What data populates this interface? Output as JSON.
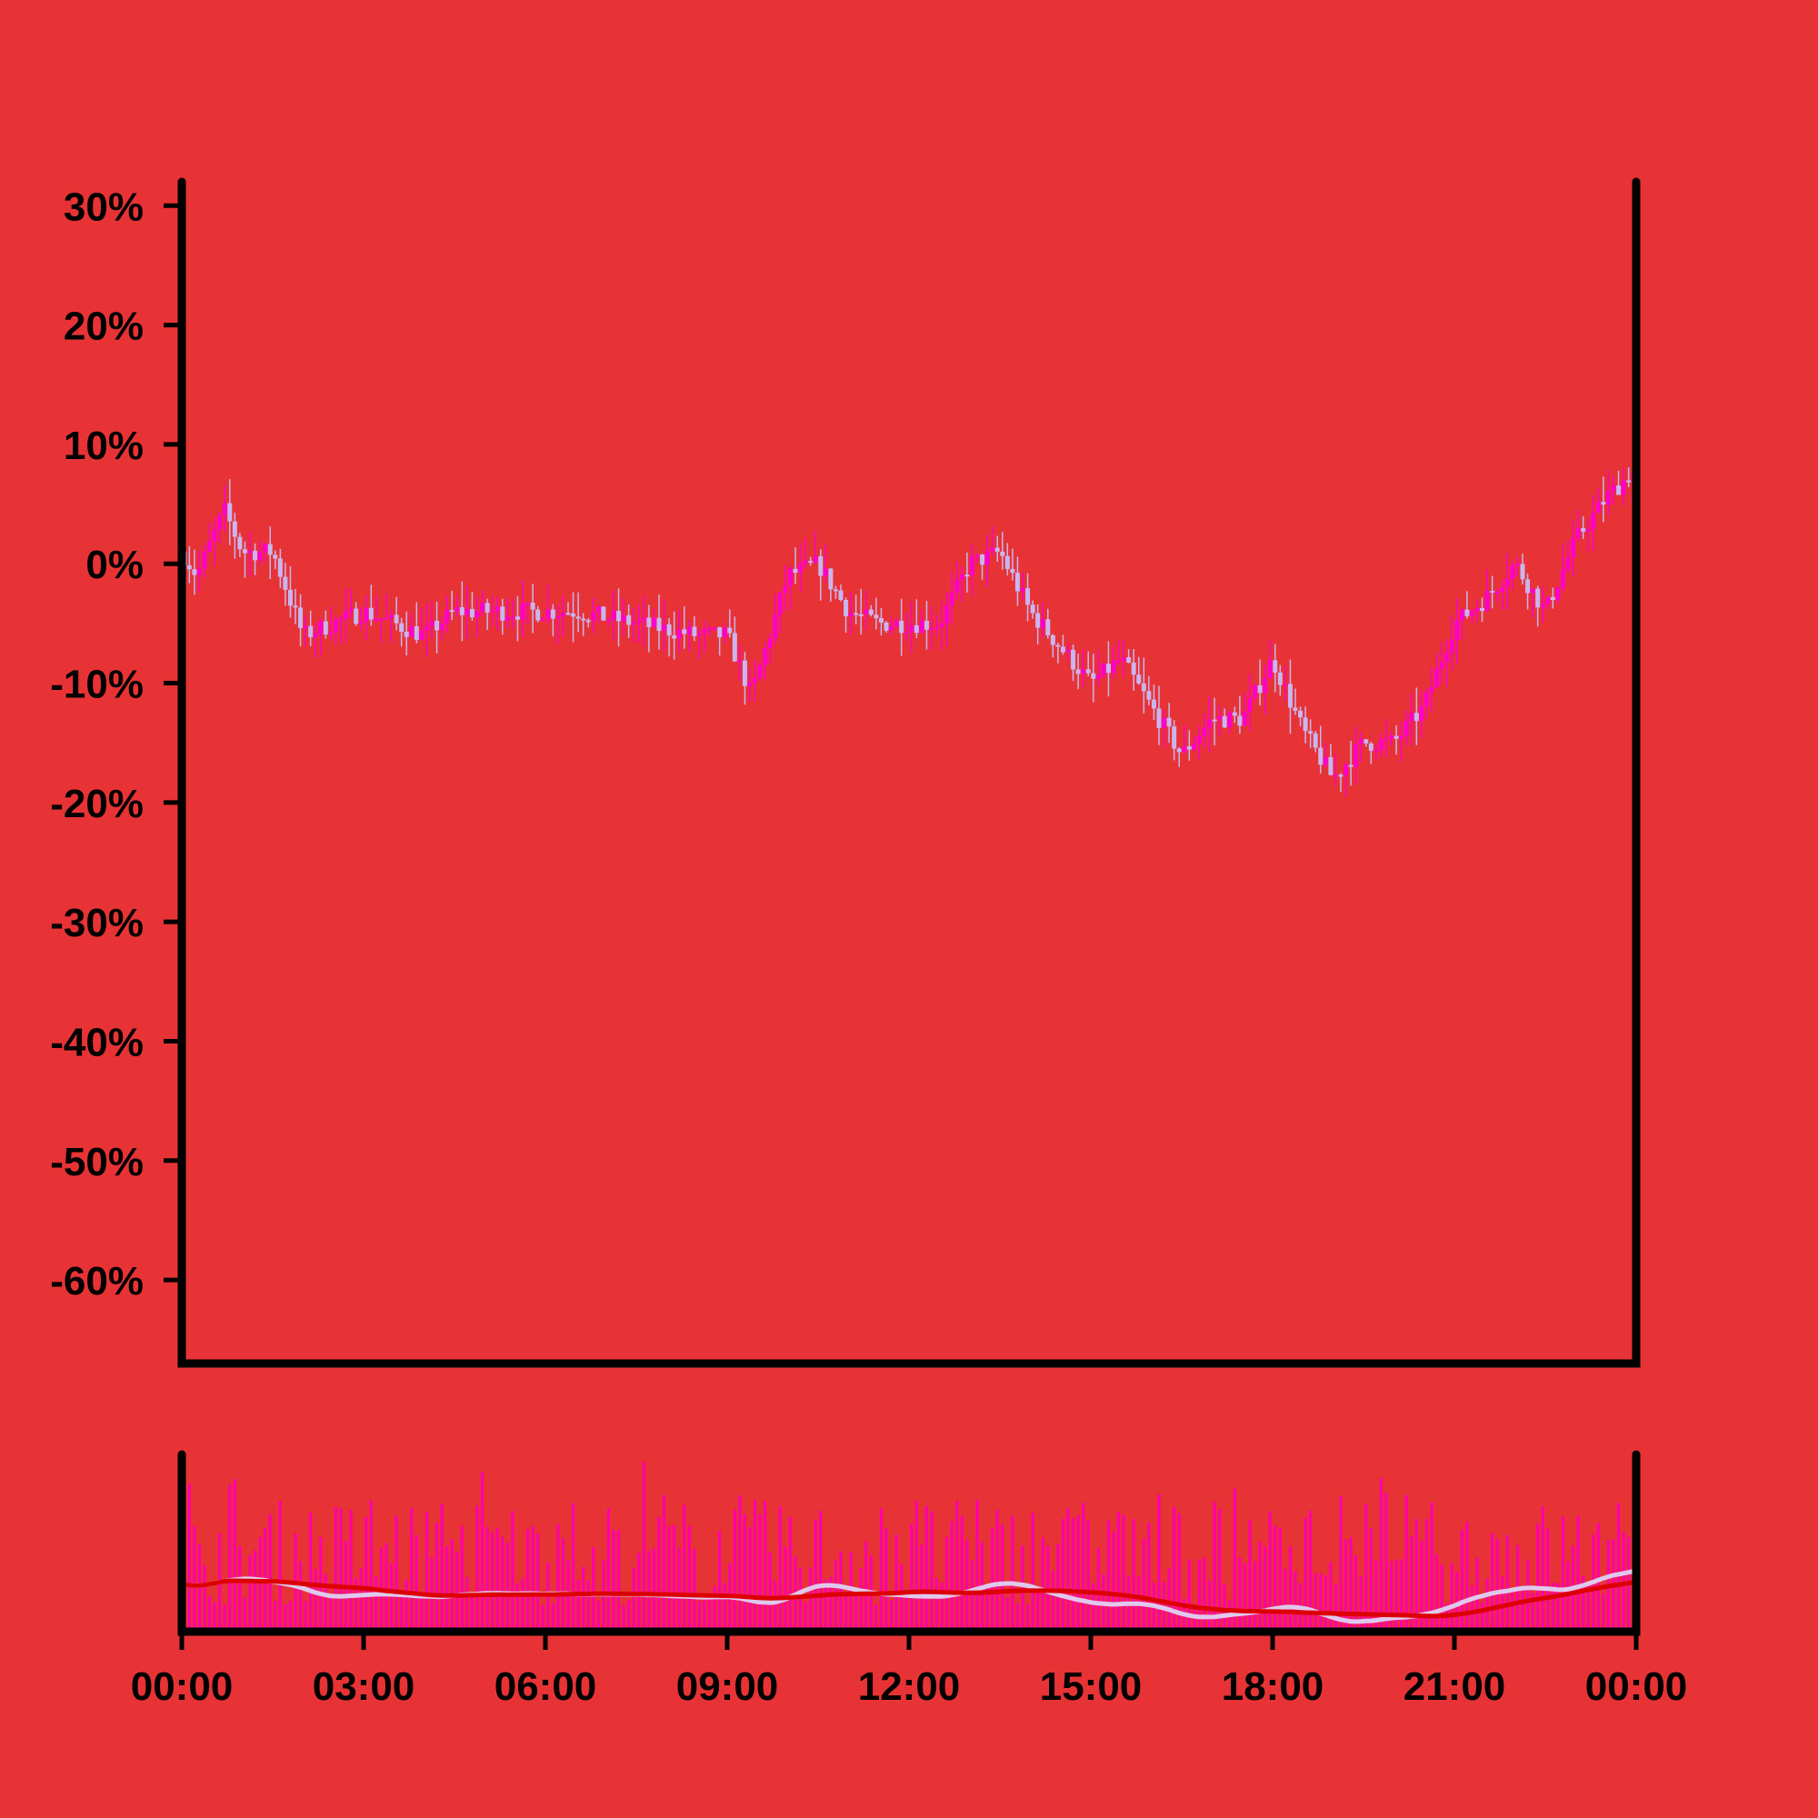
{
  "colors": {
    "background": "#e73335",
    "axis": "#000000",
    "candle_up": "#ff00cc",
    "candle_down": "#c9b6f0",
    "volume": "#ff00aa",
    "ma_fast": "#e0c8ee",
    "ma_slow": "#dd0000"
  },
  "chart_data": {
    "type": "candlestick",
    "title": "",
    "xlabel": "",
    "ylabel": "",
    "y_unit": "percent",
    "ylim": [
      -67,
      32
    ],
    "yticks": [
      30,
      20,
      10,
      0,
      -10,
      -20,
      -30,
      -40,
      -50,
      -60
    ],
    "ytick_labels": [
      "30%",
      "20%",
      "10%",
      "0%",
      "-10%",
      "-20%",
      "-30%",
      "-40%",
      "-50%",
      "-60%"
    ],
    "x_range": [
      "00:00",
      "24:00"
    ],
    "xtick_labels": [
      "00:00",
      "03:00",
      "06:00",
      "09:00",
      "12:00",
      "15:00",
      "18:00",
      "21:00",
      "00:00"
    ],
    "grid": false,
    "price_anchors": {
      "time_hours": [
        0,
        0.25,
        0.7,
        1.0,
        1.5,
        2.0,
        3.0,
        4.0,
        4.5,
        5.5,
        6.5,
        7.5,
        8.5,
        9.0,
        9.4,
        10.0,
        10.5,
        11.0,
        11.5,
        12.0,
        12.5,
        13.0,
        13.5,
        14.0,
        15.0,
        15.5,
        16.5,
        17.0,
        17.5,
        18.0,
        18.5,
        19.0,
        19.5,
        20.0,
        20.5,
        21.0,
        21.5,
        22.0,
        22.5,
        23.0,
        23.5,
        23.9
      ],
      "close_pct": [
        1,
        -1,
        4.5,
        1,
        1,
        -6,
        -4,
        -6,
        -4,
        -4,
        -4,
        -5,
        -6,
        -6,
        -11,
        -1,
        0,
        -4,
        -5,
        -5,
        -5,
        0,
        1,
        -4,
        -10,
        -8,
        -16,
        -13,
        -13,
        -8,
        -14,
        -18,
        -15,
        -15,
        -12,
        -5,
        -3,
        0,
        -4,
        2,
        5.5,
        7.5
      ]
    },
    "volume_panel": {
      "series": [
        "volume",
        "fast moving average",
        "slow moving average"
      ]
    }
  }
}
